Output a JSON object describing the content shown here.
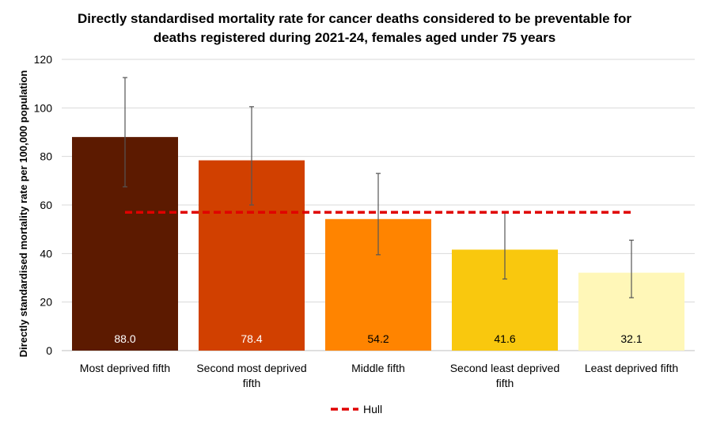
{
  "chart_data": {
    "type": "bar",
    "title_lines": [
      "Directly standardised mortality rate for cancer deaths considered to be preventable for",
      "deaths registered during 2021-24, females aged under 75 years"
    ],
    "ylabel": "Directly standardised mortality rate per 100,000 population",
    "xlabel": "",
    "ylim": [
      0,
      120
    ],
    "yticks": [
      0,
      20,
      40,
      60,
      80,
      100,
      120
    ],
    "grid": true,
    "categories": [
      [
        "Most deprived fifth"
      ],
      [
        "Second most deprived",
        "fifth"
      ],
      [
        "Middle fifth"
      ],
      [
        "Second least deprived",
        "fifth"
      ],
      [
        "Least deprived fifth"
      ]
    ],
    "values": [
      88.0,
      78.4,
      54.2,
      41.6,
      32.1
    ],
    "value_labels": [
      "88.0",
      "78.4",
      "54.2",
      "41.6",
      "32.1"
    ],
    "error_low": [
      67.5,
      60.0,
      39.5,
      29.5,
      21.8
    ],
    "error_high": [
      112.5,
      100.5,
      73.0,
      57.0,
      45.5
    ],
    "bar_colors": [
      "#5c1a00",
      "#d14000",
      "#ff8400",
      "#f9c80e",
      "#fff7b8"
    ],
    "label_colors": [
      "#ffffff",
      "#ffffff",
      "#000000",
      "#000000",
      "#000000"
    ],
    "reference_line": {
      "name": "Hull",
      "value": 57.0,
      "color": "#e00000"
    },
    "legend_position": "bottom-center"
  }
}
